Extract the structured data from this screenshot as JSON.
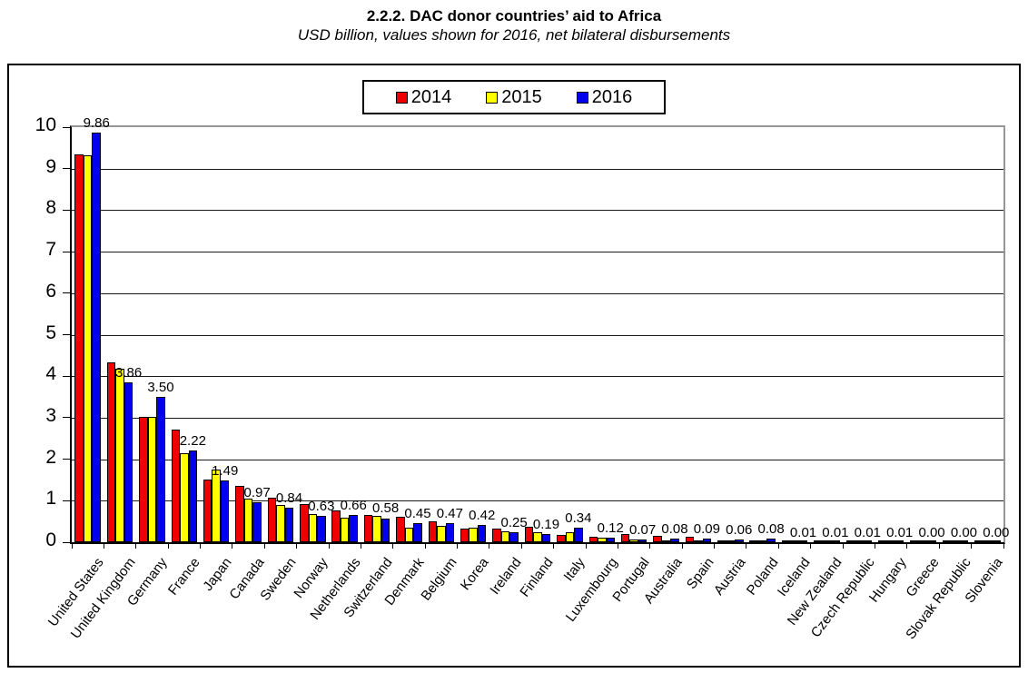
{
  "page": {
    "title": "2.2.2. DAC donor countries’ aid to Africa",
    "subtitle": "USD billion, values shown for 2016, net bilateral disbursements"
  },
  "chart_data": {
    "type": "bar",
    "title": "2.2.2. DAC donor countries’ aid to Africa",
    "subtitle": "USD billion, values shown for 2016, net bilateral disbursements",
    "unit": "USD billion",
    "categories": [
      "United States",
      "United Kingdom",
      "Germany",
      "France",
      "Japan",
      "Canada",
      "Sweden",
      "Norway",
      "Netherlands",
      "Switzerland",
      "Denmark",
      "Belgium",
      "Korea",
      "Ireland",
      "Finland",
      "Italy",
      "Luxembourg",
      "Portugal",
      "Australia",
      "Spain",
      "Austria",
      "Poland",
      "Iceland",
      "New Zealand",
      "Czech Republic",
      "Hungary",
      "Greece",
      "Slovak Republic",
      "Slovenia"
    ],
    "series": [
      {
        "name": "2014",
        "color": "#ee0000",
        "values": [
          9.35,
          4.33,
          3.03,
          2.72,
          1.52,
          1.35,
          1.08,
          0.91,
          0.76,
          0.65,
          0.61,
          0.5,
          0.33,
          0.32,
          0.37,
          0.17,
          0.13,
          0.19,
          0.16,
          0.13,
          0.04,
          0.03,
          0.01,
          0.01,
          0.01,
          0.01,
          0.0,
          0.0,
          0.0
        ]
      },
      {
        "name": "2015",
        "color": "#ffff00",
        "values": [
          9.32,
          4.18,
          3.03,
          2.14,
          1.76,
          1.05,
          0.89,
          0.67,
          0.6,
          0.63,
          0.34,
          0.39,
          0.36,
          0.27,
          0.25,
          0.25,
          0.1,
          0.06,
          0.05,
          0.03,
          0.02,
          0.03,
          0.01,
          0.01,
          0.01,
          0.01,
          0.0,
          0.0,
          0.0
        ]
      },
      {
        "name": "2016",
        "color": "#0000ee",
        "values": [
          9.86,
          3.86,
          3.5,
          2.22,
          1.49,
          0.97,
          0.84,
          0.63,
          0.66,
          0.58,
          0.45,
          0.47,
          0.42,
          0.25,
          0.19,
          0.34,
          0.12,
          0.07,
          0.08,
          0.09,
          0.06,
          0.08,
          0.01,
          0.01,
          0.01,
          0.01,
          0.0,
          0.0,
          0.0
        ]
      }
    ],
    "value_labels": [
      "9.86",
      "3.86",
      "3.50",
      "2.22",
      "1.49",
      "0.97",
      "0.84",
      "0.63",
      "0.66",
      "0.58",
      "0.45",
      "0.47",
      "0.42",
      "0.25",
      "0.19",
      "0.34",
      "0.12",
      "0.07",
      "0.08",
      "0.09",
      "0.06",
      "0.08",
      "0.01",
      "0.01",
      "0.01",
      "0.01",
      "0.00",
      "0.00",
      "0.00"
    ],
    "value_labels_series": "2016",
    "ylim": [
      0,
      10
    ],
    "yticks": [
      "0",
      "1",
      "2",
      "3",
      "4",
      "5",
      "6",
      "7",
      "8",
      "9",
      "10"
    ],
    "grid": true,
    "legend_position": "top-center",
    "legend_entries": [
      "2014",
      "2015",
      "2016"
    ]
  },
  "colors": {
    "bar_2014": "#ee0000",
    "bar_2015": "#ffff00",
    "bar_2016": "#0000ee",
    "bar_border": "#000000",
    "gridline": "#1a1a1a",
    "plot_border_gray": "#969696",
    "axis_black": "#000000"
  }
}
